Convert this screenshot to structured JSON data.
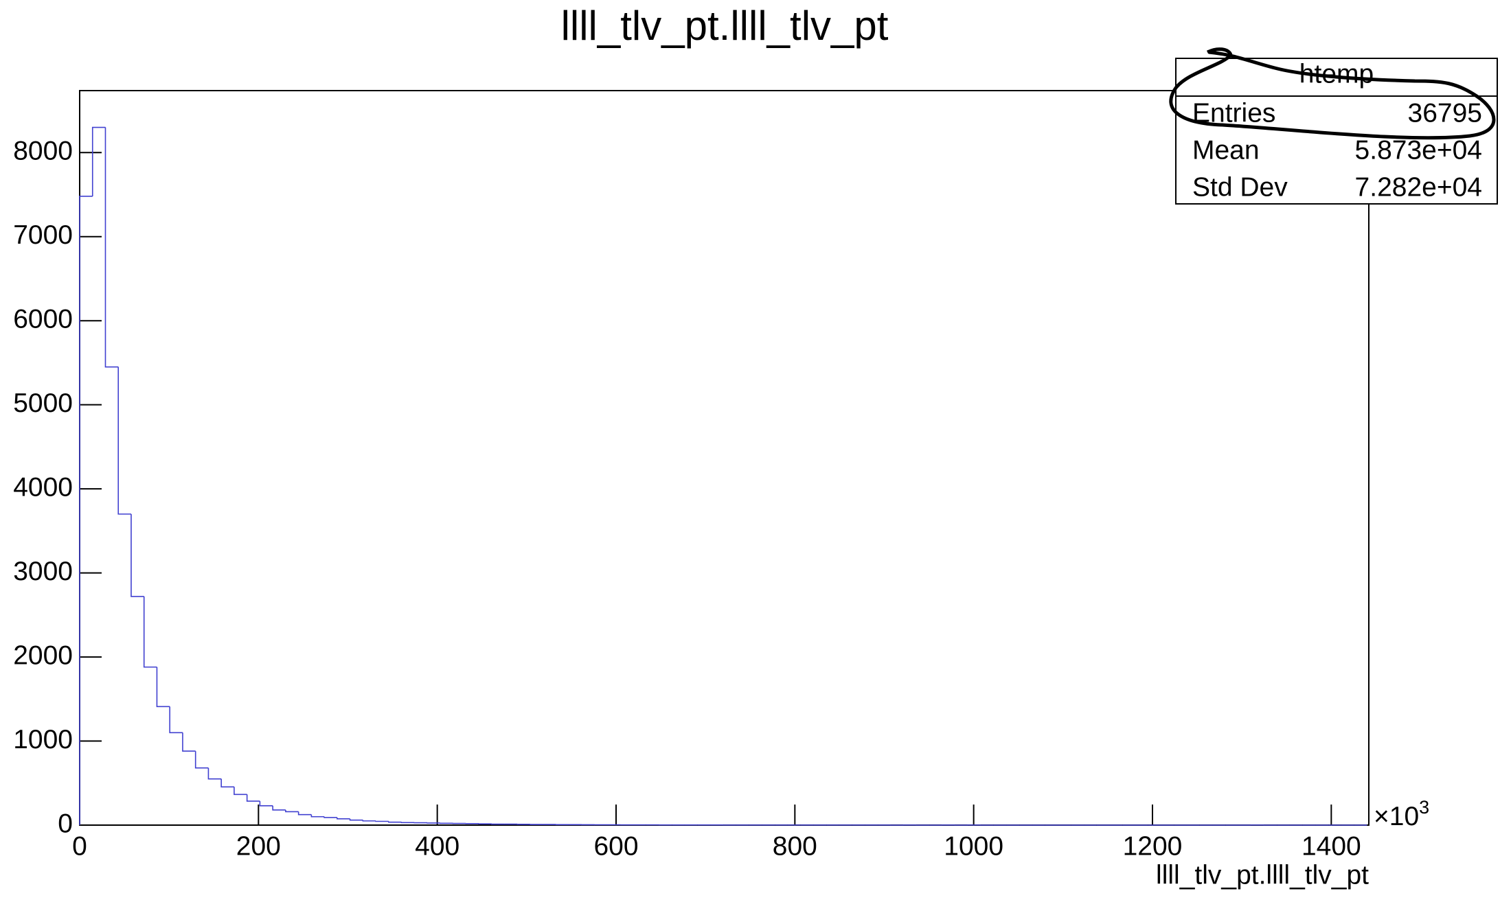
{
  "chart_data": {
    "type": "histogram",
    "title": "llll_tlv_pt.llll_tlv_pt",
    "x_label": "llll_tlv_pt.llll_tlv_pt",
    "x_multiplier": {
      "base": "×10",
      "exponent": "3"
    },
    "color": "#4040d0",
    "bins": [
      0,
      14.4,
      28.8,
      43.2,
      57.6,
      72,
      86.4,
      100.8,
      115.2,
      129.6,
      144,
      158.4,
      172.8,
      187.2,
      201.6,
      216,
      230.4,
      244.8,
      259.2,
      273.6,
      288,
      302.4,
      316.8,
      331.2,
      345.6,
      360,
      374.4,
      388.8,
      403.2,
      417.6,
      432,
      446.4,
      460.8,
      475.2,
      489.6,
      504,
      518.4,
      532.8,
      547.2,
      561.6,
      576,
      590.4,
      604.8,
      619.2,
      633.6,
      648,
      662.4,
      676.8,
      691.2,
      705.6,
      720,
      734.4,
      748.8,
      763.2,
      777.6,
      792,
      806.4,
      820.8,
      835.2,
      849.6,
      864,
      878.4,
      892.8,
      907.2,
      921.6,
      936,
      950.4,
      964.8,
      979.2,
      993.6,
      1008,
      1022.4,
      1036.8,
      1051.2,
      1065.6,
      1080,
      1094.4,
      1108.8,
      1123.2,
      1137.6,
      1152,
      1166.4,
      1180.8,
      1195.2,
      1209.6,
      1224,
      1238.4,
      1252.8,
      1267.2,
      1281.6,
      1296,
      1310.4,
      1324.8,
      1339.2,
      1353.6,
      1368,
      1382.4,
      1396.8,
      1411.2,
      1425.6,
      1440
    ],
    "counts": [
      7480,
      8300,
      5450,
      3700,
      2720,
      1880,
      1410,
      1100,
      880,
      680,
      550,
      455,
      365,
      285,
      230,
      180,
      160,
      125,
      100,
      90,
      75,
      60,
      50,
      45,
      35,
      30,
      28,
      25,
      22,
      20,
      18,
      15,
      12,
      12,
      10,
      8,
      8,
      6,
      6,
      5,
      4,
      4,
      3,
      3,
      3,
      2,
      2,
      2,
      2,
      2,
      1,
      1,
      1,
      1,
      1,
      1,
      1,
      1,
      1,
      1,
      1,
      1,
      1,
      0,
      1,
      0,
      0,
      1,
      0,
      1,
      0,
      0,
      0,
      0,
      0,
      0,
      0,
      0,
      0,
      0,
      0,
      0,
      0,
      0,
      0,
      0,
      0,
      0,
      0,
      0,
      0,
      1,
      0,
      0,
      0,
      0,
      0,
      0,
      0,
      0
    ],
    "xlim": [
      0,
      1442
    ],
    "ylim": [
      0,
      8737
    ],
    "xticks": [
      0,
      200,
      400,
      600,
      800,
      1000,
      1200,
      1400
    ],
    "yticks": [
      0,
      1000,
      2000,
      3000,
      4000,
      5000,
      6000,
      7000,
      8000
    ],
    "stats": {
      "title": "htemp",
      "rows": [
        [
          "Entries",
          36795
        ],
        [
          "Mean",
          "5.873e+04"
        ],
        [
          "Std Dev",
          "7.282e+04"
        ]
      ]
    }
  }
}
